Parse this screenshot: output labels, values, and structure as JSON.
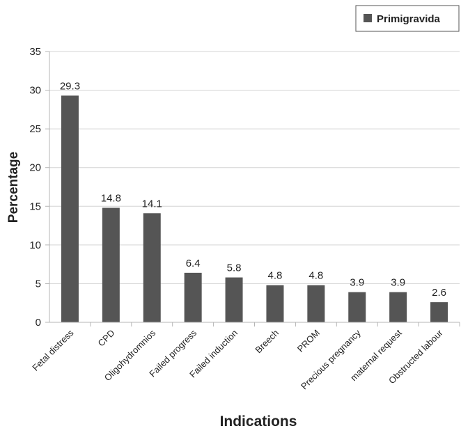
{
  "chart_data": {
    "type": "bar",
    "categories": [
      "Fetal distress",
      "CPD",
      "Oligohydromnios",
      "Failed progress",
      "Failed induction",
      "Breech",
      "PROM",
      "Precious pregnancy",
      "maternal request",
      "Obstructed labour"
    ],
    "series": [
      {
        "name": "Primigravida",
        "values": [
          29.3,
          14.8,
          14.1,
          6.4,
          5.8,
          4.8,
          4.8,
          3.9,
          3.9,
          2.6
        ]
      }
    ],
    "value_labels": [
      "29.3",
      "14.8",
      "14.1",
      "6.4",
      "5.8",
      "4.8",
      "4.8",
      "3.9",
      "3.9",
      "2.6"
    ],
    "xlabel": "Indications",
    "ylabel": "Percentage",
    "ylim": [
      0,
      35
    ],
    "yticks": [
      "0",
      "5",
      "10",
      "15",
      "20",
      "25",
      "30",
      "35"
    ],
    "grid": true,
    "legend_position": "top-right",
    "bar_color": "#555555"
  }
}
